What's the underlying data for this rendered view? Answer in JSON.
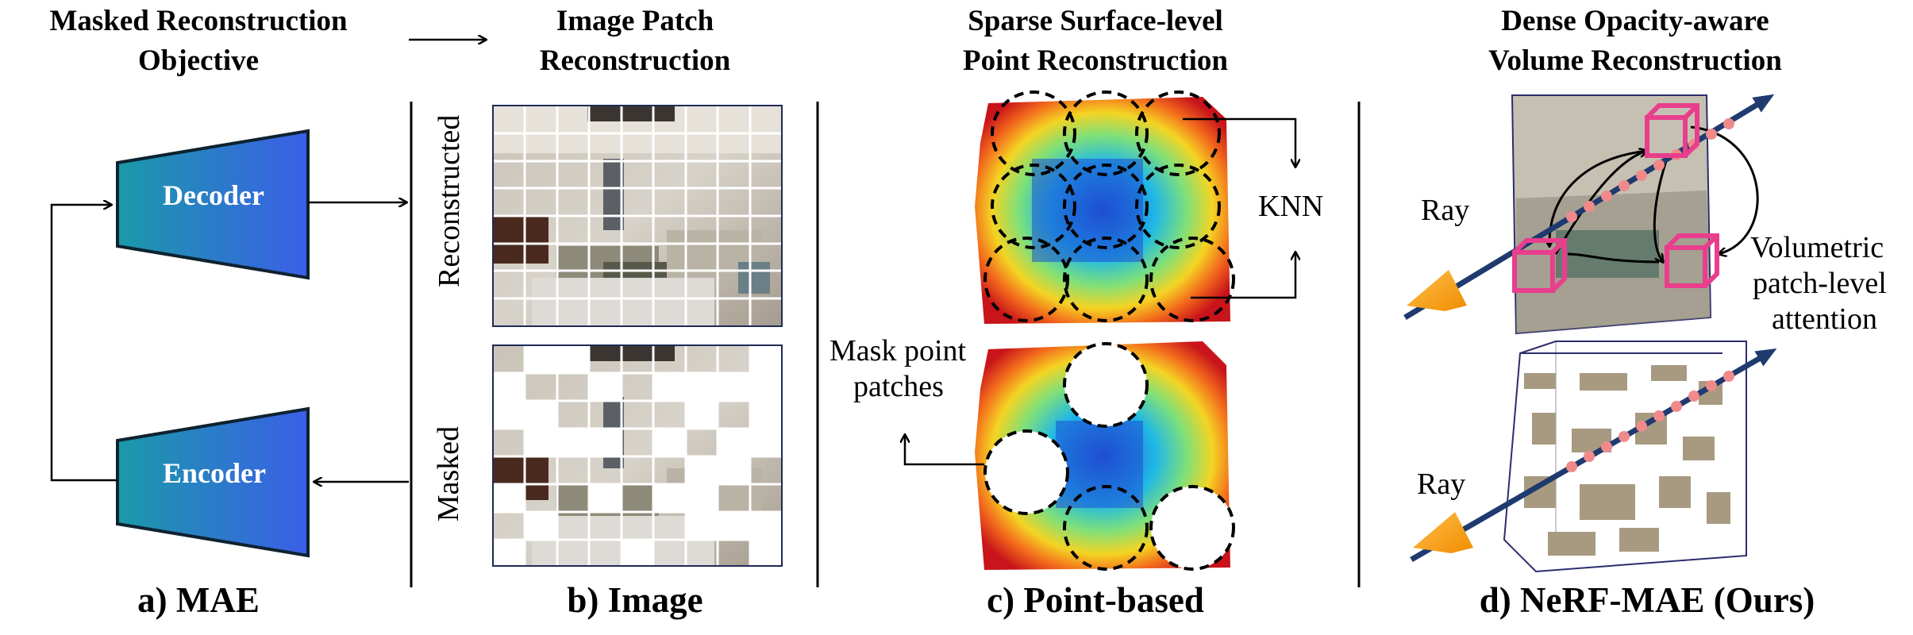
{
  "headers": {
    "mae": {
      "line1": "Masked Reconstruction",
      "line2": "Objective"
    },
    "image": {
      "line1": "Image Patch",
      "line2": "Reconstruction"
    },
    "point": {
      "line1": "Sparse Surface-level",
      "line2": "Point Reconstruction"
    },
    "nerf": {
      "line1": "Dense Opacity-aware",
      "line2": "Volume Reconstruction"
    }
  },
  "mae": {
    "decoder": "Decoder",
    "encoder": "Encoder"
  },
  "image_panel": {
    "reconstructed": "Reconstructed",
    "masked": "Masked"
  },
  "point_panel": {
    "knn": "KNN",
    "mask_line1": "Mask point",
    "mask_line2": "patches"
  },
  "nerf_panel": {
    "ray_top": "Ray",
    "ray_bottom": "Ray",
    "attn_line1": "Volumetric",
    "attn_line2": "patch-level",
    "attn_line3": "attention"
  },
  "captions": {
    "a": "a) MAE",
    "b": "b) Image",
    "c": "c) Point-based",
    "d": "d) NeRF-MAE (Ours)"
  },
  "colors": {
    "encoder_decoder_gradient_start": "#1a9aa8",
    "encoder_decoder_gradient_end": "#3b5ee8",
    "ray": "#1f3a6e",
    "ray_dots": "#f08a8a",
    "patch_cubes": "#e83e8c",
    "ray_origin": "#f5a623"
  }
}
